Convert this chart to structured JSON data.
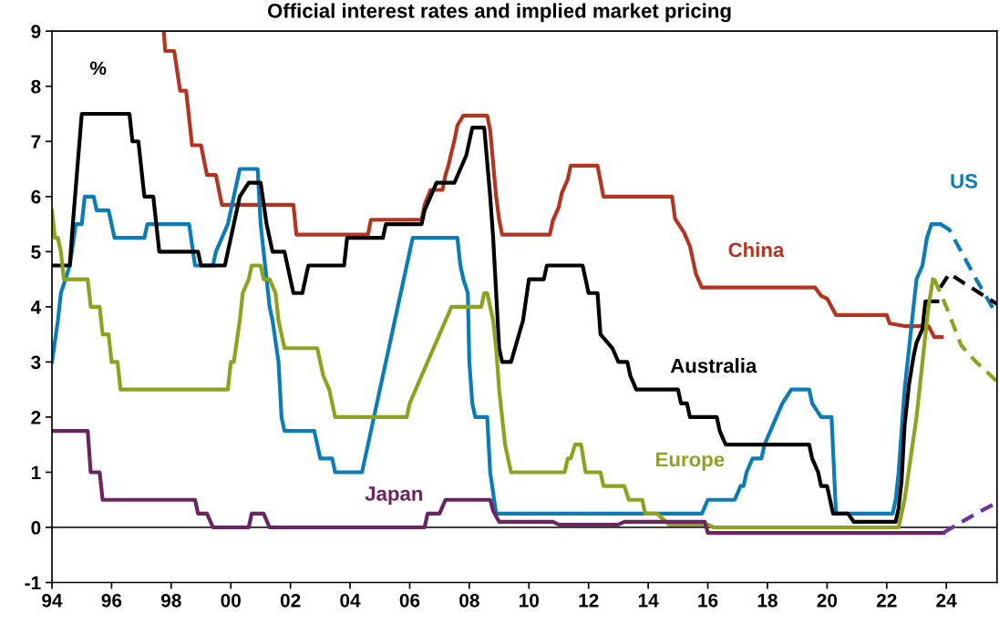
{
  "chart_data": {
    "type": "line",
    "title": "Official interest rates and implied market pricing",
    "annotations": [
      "%"
    ],
    "xlim": [
      1994,
      2025.7
    ],
    "ylim": [
      -1,
      9
    ],
    "xticks": [
      {
        "value": 1994,
        "label": "94"
      },
      {
        "value": 1996,
        "label": "96"
      },
      {
        "value": 1998,
        "label": "98"
      },
      {
        "value": 2000,
        "label": "00"
      },
      {
        "value": 2002,
        "label": "02"
      },
      {
        "value": 2004,
        "label": "04"
      },
      {
        "value": 2006,
        "label": "06"
      },
      {
        "value": 2008,
        "label": "08"
      },
      {
        "value": 2010,
        "label": "10"
      },
      {
        "value": 2012,
        "label": "12"
      },
      {
        "value": 2014,
        "label": "14"
      },
      {
        "value": 2016,
        "label": "16"
      },
      {
        "value": 2018,
        "label": "18"
      },
      {
        "value": 2020,
        "label": "20"
      },
      {
        "value": 2022,
        "label": "22"
      },
      {
        "value": 2024,
        "label": "24"
      }
    ],
    "yticks": [
      -1,
      0,
      1,
      2,
      3,
      4,
      5,
      6,
      7,
      8,
      9
    ],
    "grid": false,
    "legend": false,
    "ref_lines": [
      {
        "axis": "y",
        "value": 0,
        "color": "#000000"
      }
    ],
    "series": [
      {
        "name": "China",
        "color": "#b5341f",
        "line_style": "solid",
        "x": [
          1997.75,
          1997.8,
          1998.1,
          1998.3,
          1998.5,
          1998.7,
          1999.0,
          1999.2,
          1999.5,
          1999.7,
          2002.1,
          2002.2,
          2004.6,
          2004.7,
          2006.4,
          2006.5,
          2006.7,
          2007.1,
          2007.2,
          2007.3,
          2007.5,
          2007.6,
          2007.8,
          2008.6,
          2008.7,
          2008.9,
          2009.0,
          2009.1,
          2010.7,
          2010.8,
          2011.0,
          2011.1,
          2011.3,
          2011.4,
          2012.3,
          2012.5,
          2014.8,
          2014.9,
          2015.2,
          2015.4,
          2015.5,
          2015.6,
          2015.8,
          2019.6,
          2019.8,
          2020.0,
          2020.3,
          2022.0,
          2022.1,
          2022.6,
          2023.4,
          2023.5,
          2023.6,
          2023.85
        ],
        "values": [
          9,
          8.64,
          8.64,
          7.92,
          7.92,
          6.93,
          6.93,
          6.39,
          6.39,
          5.85,
          5.85,
          5.31,
          5.31,
          5.58,
          5.58,
          5.85,
          6.12,
          6.12,
          6.39,
          6.57,
          7.02,
          7.29,
          7.47,
          7.47,
          7.2,
          6.0,
          5.58,
          5.31,
          5.31,
          5.56,
          5.81,
          6.06,
          6.31,
          6.56,
          6.56,
          6.0,
          6.0,
          5.6,
          5.35,
          5.1,
          4.85,
          4.6,
          4.35,
          4.35,
          4.2,
          4.15,
          3.85,
          3.85,
          3.7,
          3.65,
          3.65,
          3.55,
          3.45,
          3.45
        ]
      },
      {
        "name": "US",
        "color": "#0a7db8",
        "line_style": "solid",
        "x": [
          1994.0,
          1994.2,
          1994.3,
          1994.6,
          1994.8,
          1995.0,
          1995.1,
          1995.4,
          1995.5,
          1995.9,
          1996.1,
          1997.1,
          1997.2,
          1998.6,
          1998.8,
          1999.4,
          1999.5,
          1999.7,
          1999.9,
          2000.1,
          2000.3,
          2000.9,
          2001.0,
          2001.1,
          2001.3,
          2001.4,
          2001.6,
          2001.7,
          2001.8,
          2002.8,
          2003.0,
          2003.4,
          2003.5,
          2004.4,
          2004.5,
          2004.7,
          2004.9,
          2005.1,
          2005.3,
          2005.5,
          2005.7,
          2005.9,
          2006.1,
          2007.6,
          2007.7,
          2007.8,
          2007.95,
          2008.0,
          2008.1,
          2008.2,
          2008.6,
          2008.7,
          2008.9,
          2015.8,
          2016.0,
          2016.9,
          2017.1,
          2017.2,
          2017.3,
          2017.5,
          2017.8,
          2017.9,
          2018.1,
          2018.3,
          2018.5,
          2018.8,
          2019.4,
          2019.5,
          2019.8,
          2020.15,
          2020.3,
          2022.2,
          2022.3,
          2022.4,
          2022.5,
          2022.6,
          2022.75,
          2022.9,
          2023.0,
          2023.2,
          2023.35,
          2023.5,
          2023.8
        ],
        "values": [
          3.0,
          3.75,
          4.25,
          4.75,
          5.5,
          5.5,
          6.0,
          6.0,
          5.75,
          5.75,
          5.25,
          5.25,
          5.5,
          5.5,
          4.75,
          4.75,
          5.0,
          5.25,
          5.5,
          6.0,
          6.5,
          6.5,
          5.5,
          5.0,
          4.0,
          3.75,
          3.0,
          2.0,
          1.75,
          1.75,
          1.25,
          1.25,
          1.0,
          1.0,
          1.25,
          1.75,
          2.25,
          2.75,
          3.25,
          3.75,
          4.25,
          4.75,
          5.25,
          5.25,
          4.75,
          4.5,
          4.25,
          3.0,
          2.25,
          2.0,
          2.0,
          1.0,
          0.25,
          0.25,
          0.5,
          0.5,
          0.75,
          0.75,
          1.0,
          1.25,
          1.25,
          1.5,
          1.75,
          2.0,
          2.25,
          2.5,
          2.5,
          2.25,
          2.0,
          2.0,
          0.25,
          0.25,
          0.5,
          1.0,
          1.75,
          2.5,
          3.25,
          4.0,
          4.5,
          4.75,
          5.25,
          5.5,
          5.5
        ]
      },
      {
        "color": "#0a7db8",
        "line_style": "dashed",
        "x": [
          2023.8,
          2024.1,
          2024.5,
          2025.0,
          2025.7
        ],
        "values": [
          5.5,
          5.4,
          5.0,
          4.5,
          3.85
        ]
      },
      {
        "name": "Australia",
        "color": "#000000",
        "line_style": "solid",
        "x": [
          1994.0,
          1994.6,
          1994.7,
          1994.85,
          1995.0,
          1996.6,
          1996.7,
          1996.9,
          1997.1,
          1997.4,
          1997.6,
          1998.9,
          1999.0,
          1999.8,
          1999.9,
          2000.1,
          2000.3,
          2000.6,
          2001.0,
          2001.2,
          2001.4,
          2001.8,
          2002.0,
          2002.1,
          2002.4,
          2002.6,
          2003.8,
          2003.9,
          2005.1,
          2005.2,
          2006.4,
          2006.5,
          2006.7,
          2006.9,
          2007.5,
          2007.7,
          2007.9,
          2008.1,
          2008.5,
          2008.7,
          2008.8,
          2008.9,
          2009.0,
          2009.1,
          2009.4,
          2009.8,
          2010.0,
          2010.5,
          2010.6,
          2011.8,
          2011.9,
          2012.0,
          2012.3,
          2012.4,
          2012.8,
          2013.0,
          2013.3,
          2013.4,
          2013.6,
          2015.0,
          2015.1,
          2015.3,
          2015.4,
          2016.3,
          2016.4,
          2016.6,
          2019.4,
          2019.5,
          2019.7,
          2019.8,
          2020.0,
          2020.2,
          2020.7,
          2020.9,
          2022.3,
          2022.4,
          2022.5,
          2022.6,
          2022.75,
          2022.9,
          2023.0,
          2023.2,
          2023.3,
          2023.7
        ],
        "values": [
          4.75,
          4.75,
          5.5,
          6.5,
          7.5,
          7.5,
          7.0,
          7.0,
          6.0,
          6.0,
          5.0,
          5.0,
          4.75,
          4.75,
          5.0,
          5.5,
          6.0,
          6.25,
          6.25,
          5.5,
          5.0,
          5.0,
          4.5,
          4.25,
          4.25,
          4.75,
          4.75,
          5.25,
          5.25,
          5.5,
          5.5,
          5.75,
          6.0,
          6.25,
          6.25,
          6.5,
          6.75,
          7.25,
          7.25,
          6.0,
          5.25,
          4.25,
          3.25,
          3.0,
          3.0,
          3.75,
          4.5,
          4.5,
          4.75,
          4.75,
          4.5,
          4.25,
          4.25,
          3.5,
          3.25,
          3.0,
          3.0,
          2.75,
          2.5,
          2.5,
          2.25,
          2.25,
          2.0,
          2.0,
          1.75,
          1.5,
          1.5,
          1.25,
          1.0,
          0.75,
          0.75,
          0.25,
          0.25,
          0.1,
          0.1,
          0.35,
          0.85,
          1.85,
          2.6,
          3.1,
          3.35,
          3.6,
          4.1,
          4.1
        ]
      },
      {
        "color": "#000000",
        "line_style": "dashed",
        "x": [
          2023.8,
          2024.1,
          2025.7
        ],
        "values": [
          4.35,
          4.6,
          4.05
        ]
      },
      {
        "name": "Europe",
        "color": "#8ca31e",
        "line_style": "solid",
        "x": [
          1994.0,
          1994.1,
          1994.2,
          1994.3,
          1994.4,
          1995.2,
          1995.3,
          1995.6,
          1995.7,
          1995.9,
          1996.0,
          1996.2,
          1996.3,
          1999.9,
          2000.0,
          2000.1,
          2000.3,
          2000.4,
          2000.6,
          2000.7,
          2001.0,
          2001.1,
          2001.3,
          2001.5,
          2001.6,
          2001.8,
          2002.9,
          2003.1,
          2003.3,
          2003.5,
          2005.9,
          2006.0,
          2006.2,
          2006.4,
          2006.6,
          2006.8,
          2007.0,
          2007.2,
          2007.4,
          2008.4,
          2008.5,
          2008.6,
          2008.8,
          2008.9,
          2009.0,
          2009.1,
          2009.2,
          2009.3,
          2009.4,
          2011.2,
          2011.3,
          2011.4,
          2011.55,
          2011.75,
          2011.9,
          2012.4,
          2012.5,
          2013.2,
          2013.35,
          2013.8,
          2013.9,
          2014.3,
          2014.5,
          2014.7,
          2016.0,
          2016.2,
          2022.4,
          2022.6,
          2022.8,
          2023.0,
          2023.25,
          2023.4,
          2023.55
        ],
        "values": [
          5.75,
          5.25,
          5.25,
          5.0,
          4.5,
          4.5,
          4.0,
          4.0,
          3.5,
          3.5,
          3.0,
          3.0,
          2.5,
          2.5,
          3.0,
          3.0,
          3.75,
          4.25,
          4.5,
          4.75,
          4.75,
          4.5,
          4.5,
          4.25,
          3.75,
          3.25,
          3.25,
          2.75,
          2.5,
          2.0,
          2.0,
          2.25,
          2.5,
          2.75,
          3.0,
          3.25,
          3.5,
          3.75,
          4.0,
          4.0,
          4.25,
          4.25,
          3.75,
          3.25,
          2.5,
          2.0,
          1.5,
          1.25,
          1.0,
          1.0,
          1.25,
          1.25,
          1.5,
          1.5,
          1.0,
          1.0,
          0.75,
          0.75,
          0.5,
          0.5,
          0.25,
          0.25,
          0.15,
          0.05,
          0.05,
          0.0,
          0.0,
          0.5,
          1.25,
          2.0,
          3.25,
          4.0,
          4.5
        ]
      },
      {
        "color": "#8ca31e",
        "line_style": "dashed",
        "x": [
          2023.6,
          2024.0,
          2024.5,
          2025.0,
          2025.7
        ],
        "values": [
          4.5,
          4.0,
          3.3,
          3.0,
          2.65
        ]
      },
      {
        "name": "Japan",
        "color": "#6b2461",
        "line_style": "solid",
        "x": [
          1994.0,
          1995.2,
          1995.3,
          1995.6,
          1995.7,
          1998.8,
          1998.9,
          1999.2,
          1999.4,
          2000.6,
          2000.7,
          2001.1,
          2001.3,
          2006.5,
          2006.6,
          2007.0,
          2007.2,
          2008.7,
          2008.8,
          2009.0,
          2010.8,
          2011.0,
          2013.0,
          2013.2,
          2015.9,
          2016.0,
          2023.9
        ],
        "values": [
          1.75,
          1.75,
          1.0,
          1.0,
          0.5,
          0.5,
          0.25,
          0.25,
          0.0,
          0.0,
          0.25,
          0.25,
          0.0,
          0.0,
          0.25,
          0.25,
          0.5,
          0.5,
          0.3,
          0.1,
          0.1,
          0.05,
          0.05,
          0.1,
          0.1,
          -0.1,
          -0.1
        ]
      },
      {
        "color": "#7030a0",
        "line_style": "dashed",
        "x": [
          2023.9,
          2024.2,
          2025.0,
          2025.7
        ],
        "values": [
          -0.1,
          0.0,
          0.25,
          0.45
        ]
      }
    ]
  }
}
